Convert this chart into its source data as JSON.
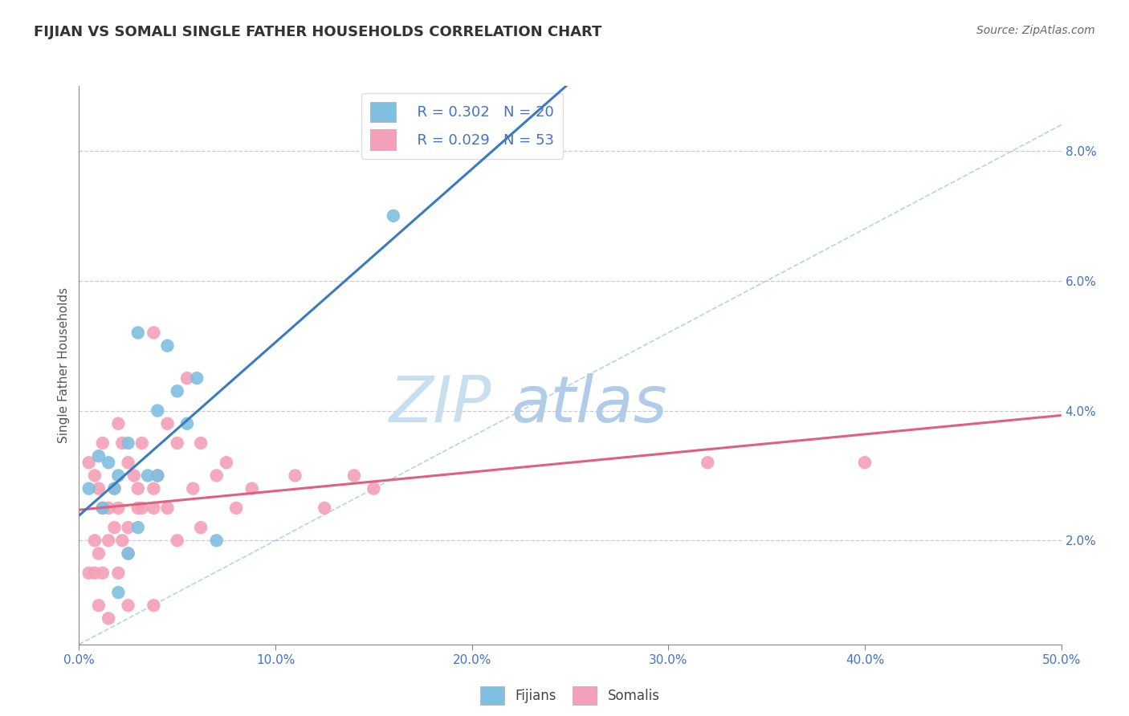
{
  "title": "FIJIAN VS SOMALI SINGLE FATHER HOUSEHOLDS CORRELATION CHART",
  "source": "Source: ZipAtlas.com",
  "ylabel": "Single Father Households",
  "x_min": 0.0,
  "x_max": 50.0,
  "y_min": 0.4,
  "y_max": 9.0,
  "fijian_color": "#7fbfdf",
  "somali_color": "#f4a0b8",
  "fijian_line_color": "#3a7bbf",
  "somali_line_color": "#e06080",
  "dashed_line_color": "#a0c8e8",
  "legend_R_fijian": "R = 0.302",
  "legend_N_fijian": "N = 20",
  "legend_R_somali": "R = 0.029",
  "legend_N_somali": "N = 53",
  "watermark_zip": "ZIP",
  "watermark_atlas": "atlas",
  "fijian_x": [
    3.0,
    4.5,
    5.0,
    6.0,
    1.0,
    1.5,
    2.0,
    2.5,
    3.5,
    4.0,
    0.5,
    1.2,
    1.8,
    3.0,
    5.5,
    2.5,
    7.0,
    16.0,
    2.0,
    4.0
  ],
  "fijian_y": [
    5.2,
    5.0,
    4.3,
    4.5,
    3.3,
    3.2,
    3.0,
    3.5,
    3.0,
    4.0,
    2.8,
    2.5,
    2.8,
    2.2,
    3.8,
    1.8,
    2.0,
    7.0,
    1.2,
    3.0
  ],
  "somali_x": [
    0.5,
    0.8,
    1.0,
    1.2,
    1.5,
    1.8,
    2.0,
    2.2,
    2.5,
    2.8,
    3.0,
    3.2,
    3.8,
    4.0,
    4.5,
    5.0,
    5.5,
    6.2,
    7.0,
    7.5,
    0.8,
    1.2,
    1.8,
    2.5,
    3.0,
    1.0,
    1.5,
    2.0,
    3.8,
    5.0,
    0.5,
    0.8,
    1.2,
    2.0,
    2.5,
    3.2,
    4.5,
    5.8,
    8.0,
    11.0,
    14.0,
    2.2,
    3.8,
    6.2,
    8.8,
    12.5,
    15.0,
    32.0,
    40.0,
    1.0,
    1.5,
    2.5,
    3.8
  ],
  "somali_y": [
    3.2,
    3.0,
    2.8,
    3.5,
    2.5,
    2.2,
    3.8,
    3.5,
    3.2,
    3.0,
    2.8,
    3.5,
    5.2,
    3.0,
    3.8,
    3.5,
    4.5,
    3.5,
    3.0,
    3.2,
    2.0,
    2.5,
    2.8,
    2.2,
    2.5,
    1.8,
    2.0,
    2.5,
    2.8,
    2.0,
    1.5,
    1.5,
    1.5,
    1.5,
    1.8,
    2.5,
    2.5,
    2.8,
    2.5,
    3.0,
    3.0,
    2.0,
    2.5,
    2.2,
    2.8,
    2.5,
    2.8,
    3.2,
    3.2,
    1.0,
    0.8,
    1.0,
    1.0
  ],
  "fijian_trend_x0": 0.0,
  "fijian_trend_x1": 50.0,
  "somali_trend_x0": 0.0,
  "somali_trend_x1": 50.0,
  "ref_line_x0": 0.0,
  "ref_line_x1": 50.0,
  "ref_line_y0": 0.4,
  "ref_line_y1": 8.4,
  "grid_yticks": [
    2.0,
    4.0,
    6.0,
    8.0
  ],
  "xtick_positions": [
    0.0,
    10.0,
    20.0,
    30.0,
    40.0,
    50.0
  ],
  "xtick_labels": [
    "0.0%",
    "10.0%",
    "20.0%",
    "30.0%",
    "40.0%",
    "50.0%"
  ]
}
